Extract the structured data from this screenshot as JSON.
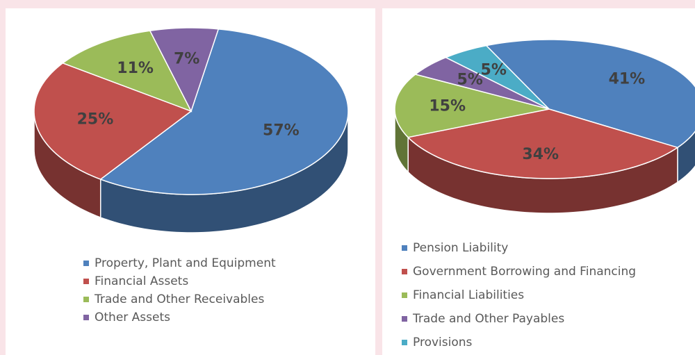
{
  "chart_data": [
    {
      "type": "pie",
      "categories": [
        "Property, Plant and Equipment",
        "Financial Assets",
        "Trade and Other Receivables",
        "Other Assets"
      ],
      "values": [
        57,
        25,
        11,
        7
      ],
      "value_labels": [
        "57%",
        "25%",
        "11%",
        "7%"
      ],
      "colors": [
        "#4f81bd",
        "#c0504d",
        "#9bbb59",
        "#8064a2"
      ]
    },
    {
      "type": "pie",
      "categories": [
        "Pension Liability",
        "Government Borrowing and Financing",
        "Financial Liabilities",
        "Trade and Other Payables",
        "Provisions"
      ],
      "values": [
        41,
        34,
        15,
        5,
        5
      ],
      "value_labels": [
        "41%",
        "34%",
        "15%",
        "5%",
        "5%"
      ],
      "colors": [
        "#4f81bd",
        "#c0504d",
        "#9bbb59",
        "#8064a2",
        "#4bacc6"
      ]
    }
  ]
}
